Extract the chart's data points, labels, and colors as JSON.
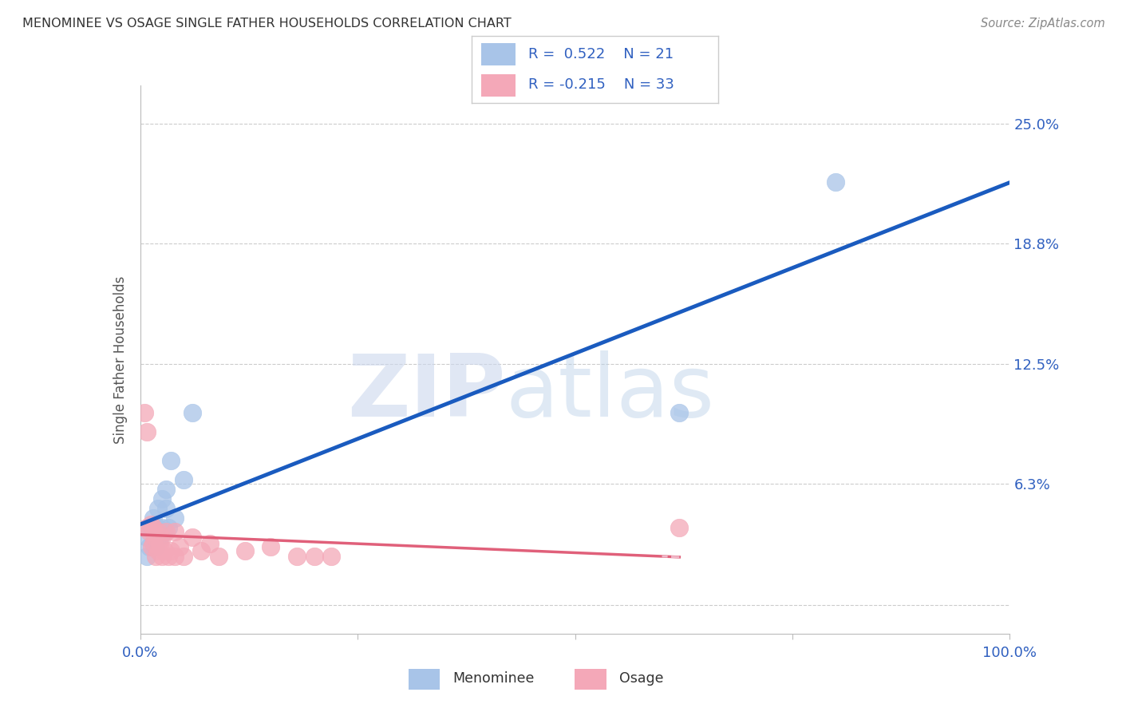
{
  "title": "MENOMINEE VS OSAGE SINGLE FATHER HOUSEHOLDS CORRELATION CHART",
  "source": "Source: ZipAtlas.com",
  "ylabel": "Single Father Households",
  "r_menominee": 0.522,
  "n_menominee": 21,
  "r_osage": -0.215,
  "n_osage": 33,
  "ytick_labels": [
    "",
    "6.3%",
    "12.5%",
    "18.8%",
    "25.0%"
  ],
  "ytick_values": [
    0.0,
    0.063,
    0.125,
    0.188,
    0.25
  ],
  "xlim": [
    0.0,
    1.0
  ],
  "ylim": [
    -0.015,
    0.27
  ],
  "watermark_zip": "ZIP",
  "watermark_atlas": "atlas",
  "menominee_color": "#a8c4e8",
  "osage_color": "#f4a8b8",
  "menominee_line_color": "#1a5bbf",
  "osage_solid_color": "#e0607a",
  "osage_dashed_color": "#f0b8c8",
  "background_color": "#ffffff",
  "grid_color": "#cccccc",
  "title_color": "#333333",
  "source_color": "#888888",
  "tick_label_color": "#3060c0",
  "ylabel_color": "#555555",
  "menominee_x": [
    0.008,
    0.008,
    0.01,
    0.012,
    0.015,
    0.018,
    0.02,
    0.02,
    0.022,
    0.025,
    0.025,
    0.028,
    0.03,
    0.03,
    0.032,
    0.035,
    0.04,
    0.05,
    0.06,
    0.62,
    0.8
  ],
  "menominee_y": [
    0.025,
    0.035,
    0.03,
    0.04,
    0.045,
    0.03,
    0.05,
    0.04,
    0.035,
    0.04,
    0.055,
    0.038,
    0.05,
    0.06,
    0.04,
    0.075,
    0.045,
    0.065,
    0.1,
    0.1,
    0.22
  ],
  "osage_x": [
    0.005,
    0.008,
    0.008,
    0.01,
    0.012,
    0.013,
    0.015,
    0.015,
    0.017,
    0.018,
    0.02,
    0.02,
    0.022,
    0.025,
    0.025,
    0.028,
    0.03,
    0.032,
    0.035,
    0.04,
    0.04,
    0.045,
    0.05,
    0.06,
    0.07,
    0.08,
    0.09,
    0.12,
    0.15,
    0.18,
    0.2,
    0.22,
    0.62
  ],
  "osage_y": [
    0.1,
    0.09,
    0.04,
    0.038,
    0.042,
    0.03,
    0.04,
    0.032,
    0.035,
    0.025,
    0.038,
    0.028,
    0.032,
    0.035,
    0.025,
    0.028,
    0.038,
    0.025,
    0.028,
    0.038,
    0.025,
    0.03,
    0.025,
    0.035,
    0.028,
    0.032,
    0.025,
    0.028,
    0.03,
    0.025,
    0.025,
    0.025,
    0.04
  ]
}
